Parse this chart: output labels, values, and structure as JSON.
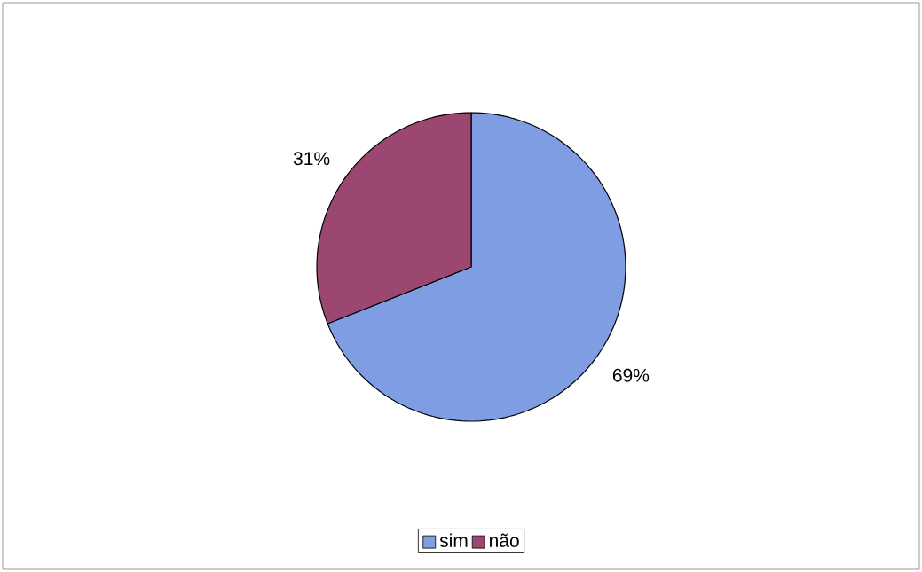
{
  "chart_data": {
    "type": "pie",
    "categories": [
      "sim",
      "não"
    ],
    "values": [
      69,
      31
    ],
    "colors": [
      "#7f9de3",
      "#9c4672"
    ],
    "value_labels": [
      "69%",
      "31%"
    ],
    "legend": "bottom"
  }
}
